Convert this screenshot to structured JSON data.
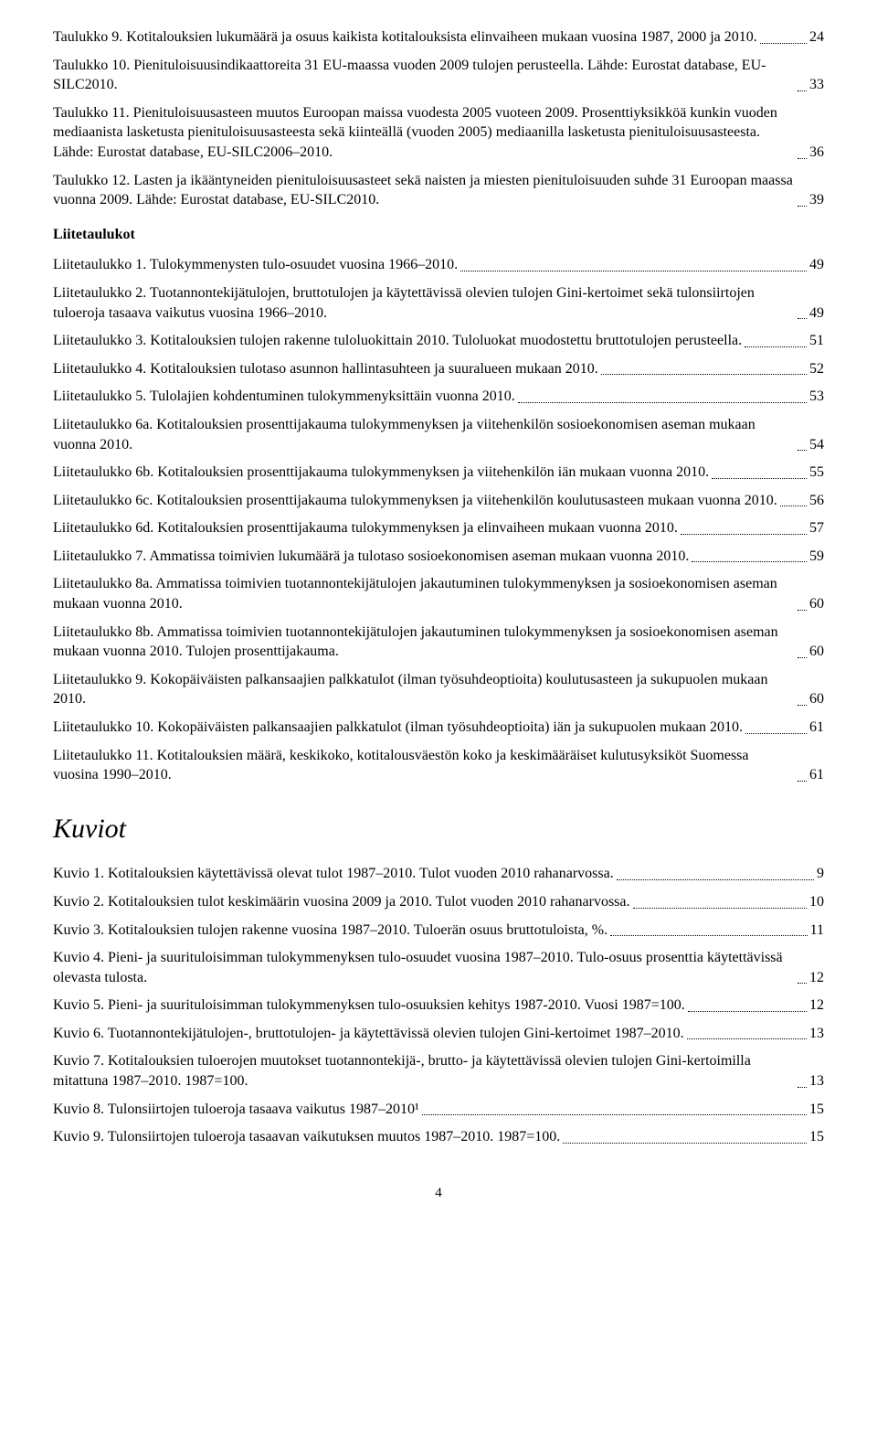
{
  "toc_top": [
    {
      "text": "Taulukko 9. Kotitalouksien lukumäärä ja osuus kaikista kotitalouksista elinvaiheen mukaan vuosina 1987, 2000 ja 2010.",
      "page": "24"
    },
    {
      "text": "Taulukko 10. Pienituloisuusindikaattoreita 31 EU-maassa vuoden 2009 tulojen perusteella. Lähde: Eurostat database, EU-SILC2010.",
      "page": "33"
    },
    {
      "text": "Taulukko 11. Pienituloisuusasteen muutos Euroopan maissa vuodesta 2005 vuoteen 2009. Prosenttiyksikköä kunkin vuoden mediaanista lasketusta pienituloisuusasteesta sekä kiinteällä (vuoden 2005) mediaanilla lasketusta pienituloisuusasteesta. Lähde: Eurostat database, EU-SILC2006–2010.",
      "page": "36"
    },
    {
      "text": "Taulukko 12. Lasten ja ikääntyneiden pienituloisuusasteet sekä naisten ja miesten pienituloisuuden suhde 31 Euroopan maassa vuonna 2009. Lähde: Eurostat database, EU-SILC2010.",
      "page": "39"
    }
  ],
  "section_liite_title": "Liitetaulukot",
  "toc_liite": [
    {
      "text": "Liitetaulukko 1. Tulokymmenysten tulo-osuudet vuosina 1966–2010.",
      "page": "49"
    },
    {
      "text": "Liitetaulukko 2. Tuotannontekijätulojen, bruttotulojen ja käytettävissä olevien tulojen Gini-kertoimet sekä tulonsiirtojen tuloeroja tasaava vaikutus vuosina 1966–2010.",
      "page": "49"
    },
    {
      "text": "Liitetaulukko 3. Kotitalouksien tulojen rakenne tuloluokittain 2010. Tuloluokat muodostettu bruttotulojen perusteella.",
      "page": "51"
    },
    {
      "text": "Liitetaulukko 4. Kotitalouksien tulotaso asunnon hallintasuhteen ja suuralueen mukaan 2010. ",
      "page": "52"
    },
    {
      "text": "Liitetaulukko 5. Tulolajien kohdentuminen tulokymmenyksittäin vuonna 2010.",
      "page": "53"
    },
    {
      "text": "Liitetaulukko 6a. Kotitalouksien prosenttijakauma tulokymmenyksen ja viitehenkilön sosioekonomisen aseman mukaan vuonna 2010.",
      "page": "54"
    },
    {
      "text": "Liitetaulukko 6b. Kotitalouksien prosenttijakauma tulokymmenyksen ja viitehenkilön iän mukaan vuonna 2010.",
      "page": "55"
    },
    {
      "text": "Liitetaulukko 6c. Kotitalouksien prosenttijakauma tulokymmenyksen ja viitehenkilön koulutusasteen mukaan vuonna 2010. ",
      "page": "56"
    },
    {
      "text": "Liitetaulukko 6d. Kotitalouksien prosenttijakauma tulokymmenyksen ja elinvaiheen mukaan vuonna 2010. ",
      "page": "57"
    },
    {
      "text": "Liitetaulukko 7. Ammatissa toimivien lukumäärä ja tulotaso sosioekonomisen aseman mukaan vuonna 2010.",
      "page": "59"
    },
    {
      "text": "Liitetaulukko 8a. Ammatissa toimivien tuotannontekijätulojen jakautuminen tulokymmenyksen ja sosioekonomisen aseman mukaan vuonna 2010. ",
      "page": "60"
    },
    {
      "text": "Liitetaulukko 8b. Ammatissa toimivien tuotannontekijätulojen jakautuminen tulokymmenyksen ja sosioekonomisen aseman mukaan vuonna 2010. Tulojen prosenttijakauma.",
      "page": "60"
    },
    {
      "text": "Liitetaulukko 9. Kokopäiväisten palkansaajien palkkatulot (ilman työsuhdeoptioita) koulutusasteen ja sukupuolen mukaan 2010.",
      "page": "60"
    },
    {
      "text": "Liitetaulukko 10. Kokopäiväisten palkansaajien palkkatulot (ilman työsuhdeoptioita) iän ja sukupuolen mukaan 2010.",
      "page": "61"
    },
    {
      "text": "Liitetaulukko 11. Kotitalouksien määrä, keskikoko, kotitalousväestön koko ja keskimääräiset kulutusyksiköt Suomessa vuosina 1990–2010.",
      "page": "61"
    }
  ],
  "section_kuviot_title": "Kuviot",
  "toc_kuviot": [
    {
      "text": "Kuvio 1. Kotitalouksien käytettävissä olevat tulot 1987–2010. Tulot vuoden 2010 rahanarvossa.",
      "page": "9"
    },
    {
      "text": "Kuvio 2. Kotitalouksien tulot keskimäärin vuosina 2009 ja 2010. Tulot vuoden 2010 rahanarvossa.",
      "page": "10"
    },
    {
      "text": "Kuvio 3. Kotitalouksien tulojen rakenne vuosina 1987–2010. Tuloerän osuus bruttotuloista, %.",
      "page": "11"
    },
    {
      "text": "Kuvio 4. Pieni- ja suurituloisimman tulokymmenyksen tulo-osuudet vuosina 1987–2010. Tulo-osuus prosenttia käytettävissä olevasta tulosta.",
      "page": "12"
    },
    {
      "text": "Kuvio 5. Pieni- ja suurituloisimman tulokymmenyksen tulo-osuuksien kehitys 1987-2010. Vuosi 1987=100.",
      "page": "12"
    },
    {
      "text": "Kuvio 6. Tuotannontekijätulojen-, bruttotulojen- ja käytettävissä olevien tulojen Gini-kertoimet 1987–2010.",
      "page": "13"
    },
    {
      "text": "Kuvio 7. Kotitalouksien tuloerojen muutokset tuotannontekijä-, brutto- ja käytettävissä olevien tulojen Gini-kertoimilla mitattuna 1987–2010. 1987=100.",
      "page": "13"
    },
    {
      "text": "Kuvio 8. Tulonsiirtojen tuloeroja tasaava vaikutus 1987–2010¹ ",
      "page": "15"
    },
    {
      "text": "Kuvio 9. Tulonsiirtojen tuloeroja tasaavan vaikutuksen muutos 1987–2010. 1987=100.",
      "page": "15"
    }
  ],
  "page_number": "4"
}
